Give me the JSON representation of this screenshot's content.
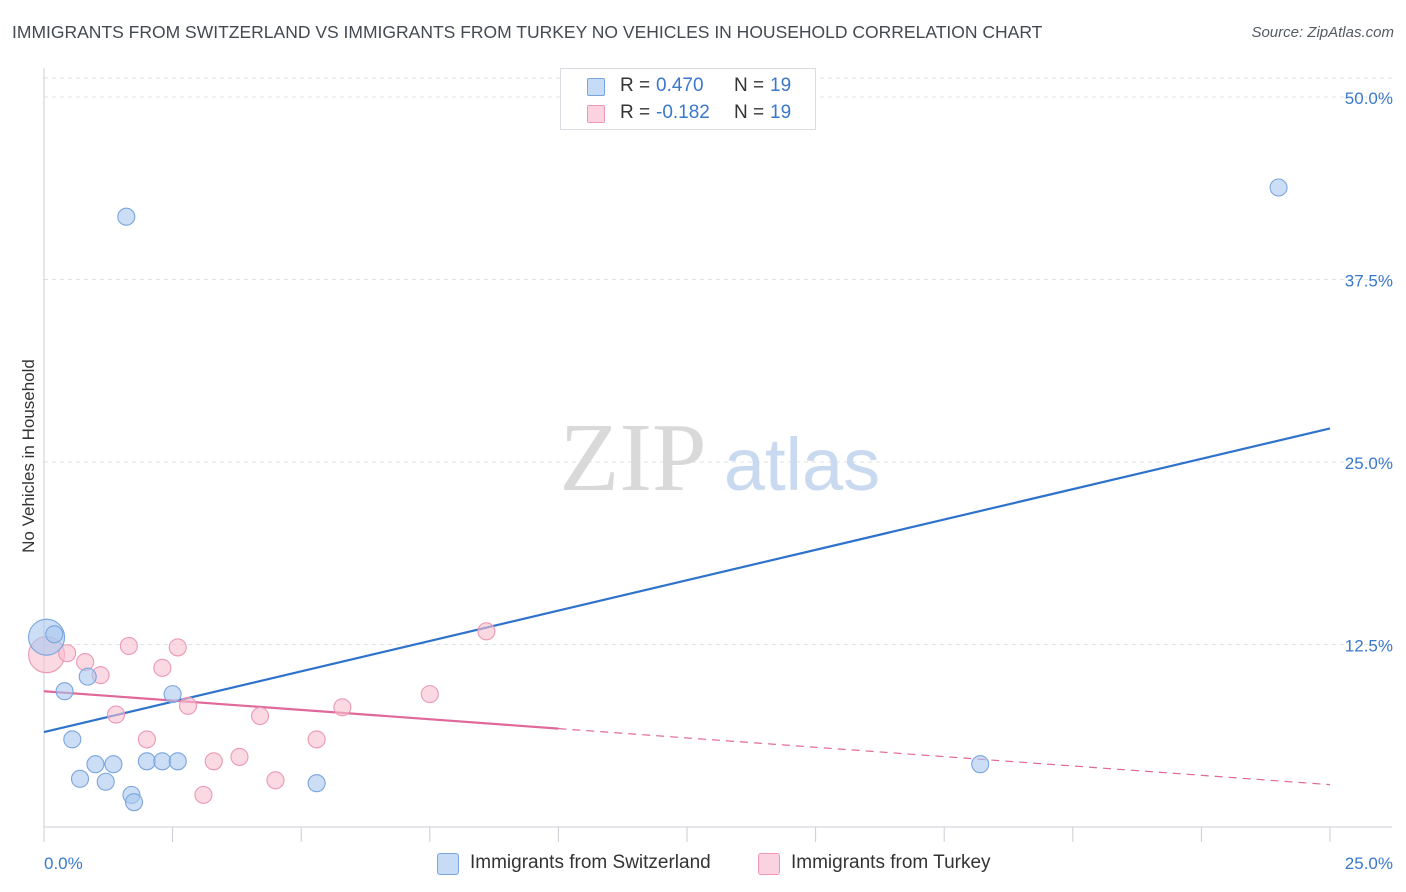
{
  "title": "IMMIGRANTS FROM SWITZERLAND VS IMMIGRANTS FROM TURKEY NO VEHICLES IN HOUSEHOLD CORRELATION CHART",
  "source": "Source: ZipAtlas.com",
  "watermark": {
    "zip": "ZIP",
    "atlas": "atlas"
  },
  "legend": {
    "rows": [
      {
        "r_label": "R =",
        "r_value": "0.470",
        "n_label": "N =",
        "n_value": "19"
      },
      {
        "r_label": "R =",
        "r_value": "-0.182",
        "n_label": "N =",
        "n_value": "19"
      }
    ]
  },
  "colors": {
    "blue_fill": "#a9c8f0",
    "blue_stroke": "#7aa5dc",
    "blue_line": "#2f72cc",
    "pink_fill": "#f6bfd0",
    "pink_stroke": "#ec98b4",
    "pink_line": "#e0689a",
    "tick_label": "#3a78cc",
    "grid": "#dfe2e6"
  },
  "chart_data": {
    "type": "scatter",
    "title": "IMMIGRANTS FROM SWITZERLAND VS IMMIGRANTS FROM TURKEY NO VEHICLES IN HOUSEHOLD CORRELATION CHART",
    "xlabel": "",
    "ylabel": "No Vehicles in Household",
    "xlim": [
      0,
      25
    ],
    "ylim": [
      0,
      51.3
    ],
    "x_tick_labels": [
      "0.0%",
      "25.0%"
    ],
    "x_ticks": [
      0,
      25
    ],
    "y_ticks": [
      12.5,
      25.0,
      37.5,
      50.0
    ],
    "y_tick_labels": [
      "12.5%",
      "25.0%",
      "37.5%",
      "50.0%"
    ],
    "grid": true,
    "legend_position": "top-center",
    "series": [
      {
        "name": "Immigrants from Switzerland",
        "color": "blue",
        "points": [
          [
            0.05,
            13.0
          ],
          [
            0.2,
            13.2
          ],
          [
            0.4,
            9.3
          ],
          [
            0.55,
            6.0
          ],
          [
            0.7,
            3.3
          ],
          [
            0.85,
            10.3
          ],
          [
            1.0,
            4.3
          ],
          [
            1.2,
            3.1
          ],
          [
            1.35,
            4.3
          ],
          [
            1.6,
            41.8
          ],
          [
            1.7,
            2.2
          ],
          [
            1.75,
            1.7
          ],
          [
            2.0,
            4.5
          ],
          [
            2.3,
            4.5
          ],
          [
            2.5,
            9.1
          ],
          [
            2.6,
            4.5
          ],
          [
            5.3,
            3.0
          ],
          [
            18.2,
            4.3
          ],
          [
            24.0,
            43.8
          ]
        ],
        "trend": {
          "x": [
            0,
            25
          ],
          "y": [
            6.5,
            27.3
          ],
          "style": "solid"
        }
      },
      {
        "name": "Immigrants from Turkey",
        "color": "pink",
        "points": [
          [
            0.05,
            11.8
          ],
          [
            0.45,
            11.9
          ],
          [
            0.8,
            11.3
          ],
          [
            1.1,
            10.4
          ],
          [
            1.4,
            7.7
          ],
          [
            1.65,
            12.4
          ],
          [
            2.0,
            6.0
          ],
          [
            2.3,
            10.9
          ],
          [
            2.6,
            12.3
          ],
          [
            2.8,
            8.3
          ],
          [
            3.1,
            2.2
          ],
          [
            3.3,
            4.5
          ],
          [
            3.8,
            4.8
          ],
          [
            4.2,
            7.6
          ],
          [
            4.5,
            3.2
          ],
          [
            5.3,
            6.0
          ],
          [
            5.8,
            8.2
          ],
          [
            7.5,
            9.1
          ],
          [
            8.6,
            13.4
          ]
        ],
        "trend": {
          "x": [
            0,
            25
          ],
          "y": [
            9.3,
            2.9
          ],
          "solid_until_x": 10,
          "style": "solid-then-dashed"
        }
      }
    ]
  },
  "axis_labels": {
    "y": "No Vehicles in Household"
  }
}
